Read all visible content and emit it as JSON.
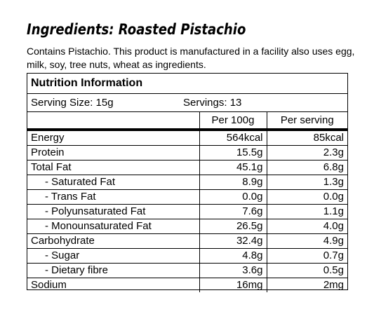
{
  "heading": "Ingredients: Roasted Pistachio",
  "description": "Contains Pistachio. This product is manufactured in a facility also uses egg, milk, soy, tree nuts, wheat as ingredients.",
  "panel": {
    "title": "Nutrition Information",
    "serving_size": "Serving Size: 15g",
    "servings": "Servings: 13",
    "col_per100": "Per 100g",
    "col_perserving": "Per serving",
    "rows": [
      {
        "label": "Energy",
        "per100": "564kcal",
        "perserving": "85kcal"
      },
      {
        "label": "Protein",
        "per100": "15.5g",
        "perserving": "2.3g"
      },
      {
        "label": "Total Fat",
        "per100": "45.1g",
        "perserving": "6.8g"
      },
      {
        "label": "- Saturated Fat",
        "per100": "8.9g",
        "perserving": "1.3g"
      },
      {
        "label": "- Trans Fat",
        "per100": "0.0g",
        "perserving": "0.0g"
      },
      {
        "label": "- Polyunsaturated Fat",
        "per100": "7.6g",
        "perserving": "1.1g"
      },
      {
        "label": "- Monounsaturated Fat",
        "per100": "26.5g",
        "perserving": "4.0g"
      },
      {
        "label": "Carbohydrate",
        "per100": "32.4g",
        "perserving": "4.9g"
      },
      {
        "label": "- Sugar",
        "per100": "4.8g",
        "perserving": "0.7g"
      },
      {
        "label": "- Dietary fibre",
        "per100": "3.6g",
        "perserving": "0.5g"
      },
      {
        "label": "Sodium",
        "per100": "16mg",
        "perserving": "2mg"
      }
    ]
  }
}
